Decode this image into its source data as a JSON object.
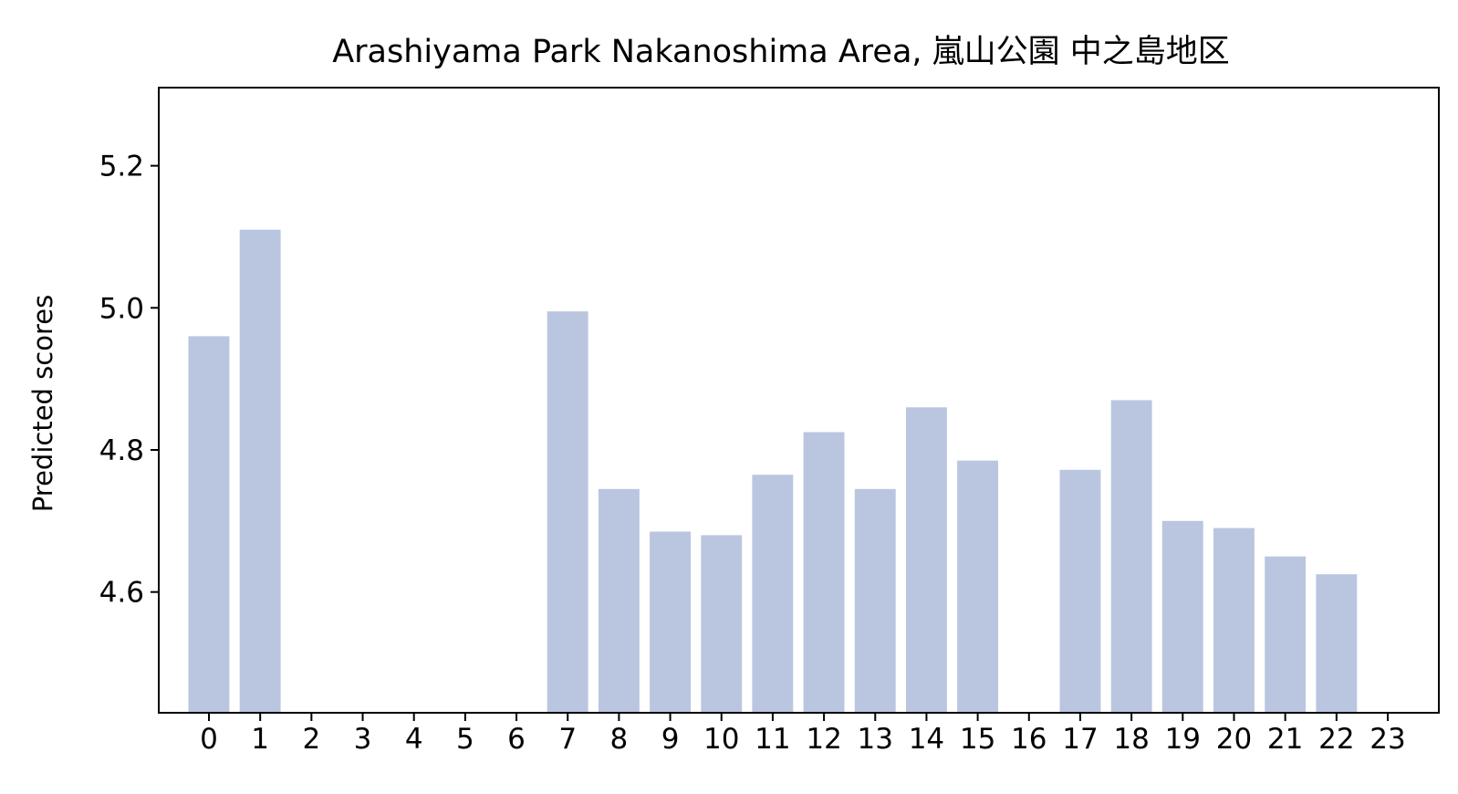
{
  "chart_data": {
    "type": "bar",
    "title": "Arashiyama Park Nakanoshima Area, 嵐山公園 中之島地区",
    "xlabel": "",
    "ylabel": "Predicted scores",
    "categories": [
      "0",
      "1",
      "2",
      "3",
      "4",
      "5",
      "6",
      "7",
      "8",
      "9",
      "10",
      "11",
      "12",
      "13",
      "14",
      "15",
      "16",
      "17",
      "18",
      "19",
      "20",
      "21",
      "22",
      "23"
    ],
    "values": [
      4.96,
      5.11,
      null,
      null,
      null,
      null,
      null,
      4.995,
      4.745,
      4.685,
      4.68,
      4.765,
      4.825,
      4.745,
      4.86,
      4.785,
      null,
      4.772,
      4.87,
      4.7,
      4.69,
      4.65,
      4.625,
      null
    ],
    "ylim": [
      4.43,
      5.31
    ],
    "yticks": [
      "4.6",
      "4.8",
      "5.0",
      "5.2"
    ],
    "bar_color": "#bac6e0",
    "grid": false,
    "legend": "none"
  }
}
